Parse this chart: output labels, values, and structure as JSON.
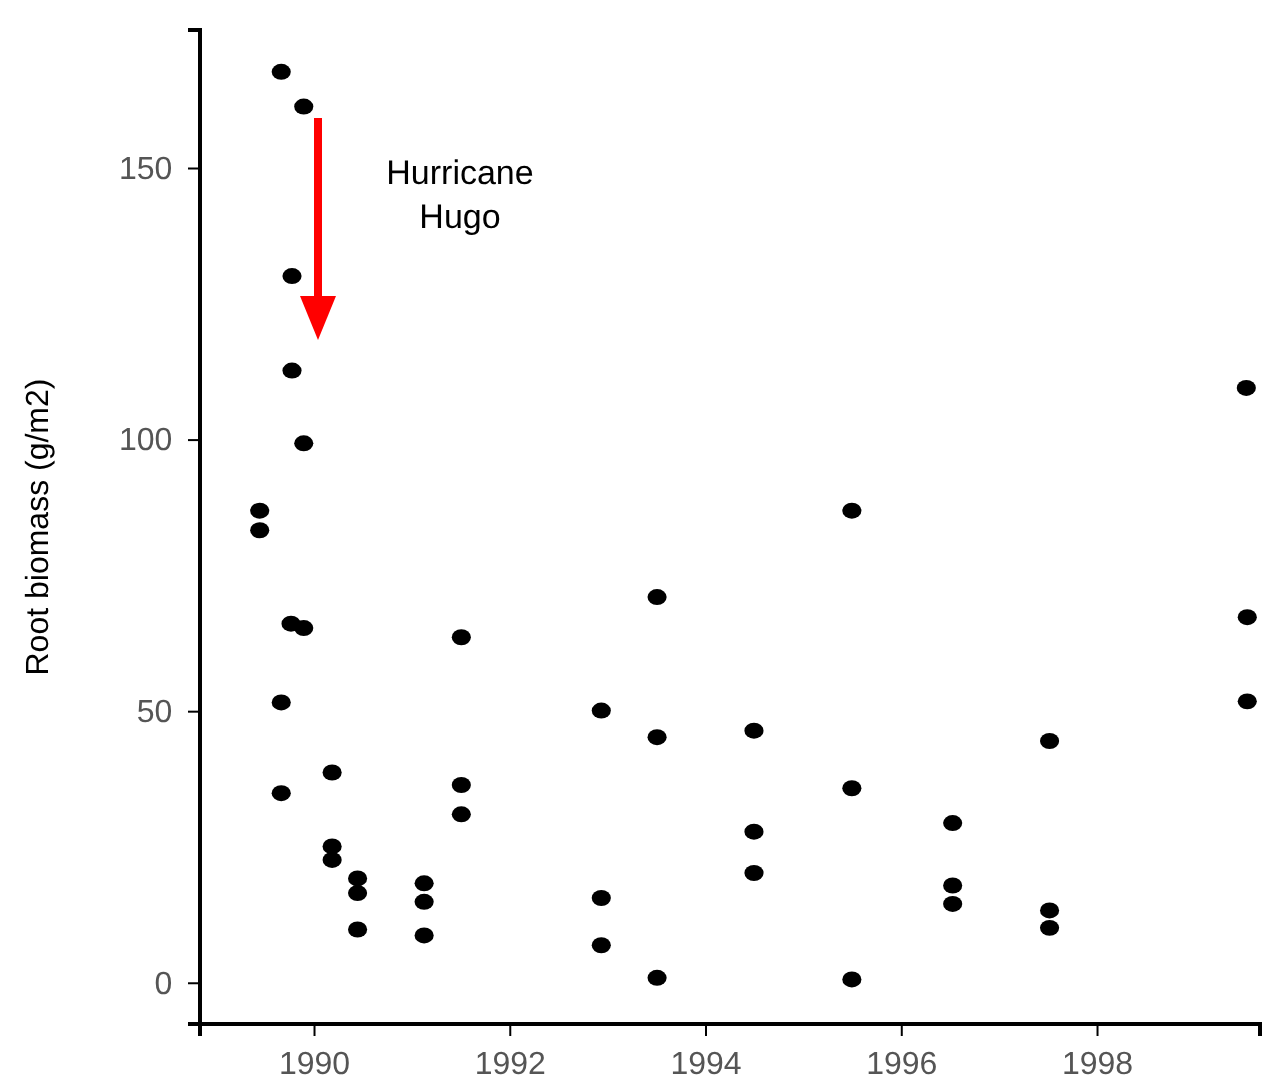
{
  "chart_data": {
    "type": "scatter",
    "ylabel": "Root biomass (g/m2)",
    "annotations": [
      "Hurricane Hugo"
    ],
    "marker": "circle",
    "grid": false,
    "xlim": [
      1988.83,
      1999.66
    ],
    "ylim": [
      -7.5,
      175.5
    ],
    "xticks": [
      1990,
      1992,
      1994,
      1996,
      1998
    ],
    "yticks": [
      0,
      50,
      100,
      150
    ],
    "series": [
      {
        "color": "#000000",
        "x": [
          1989.66,
          1989.89,
          1989.77,
          1989.77,
          1989.89,
          1989.44,
          1989.44,
          1989.76,
          1989.89,
          1989.66,
          1989.66,
          1990.18,
          1990.18,
          1990.18,
          1990.44,
          1990.44,
          1990.44,
          1991.12,
          1991.12,
          1991.12,
          1991.5,
          1991.5,
          1991.5,
          1992.93,
          1992.93,
          1992.93,
          1993.5,
          1993.5,
          1993.5,
          1994.49,
          1994.49,
          1994.49,
          1995.49,
          1995.49,
          1995.49,
          1996.52,
          1996.52,
          1996.52,
          1997.51,
          1997.51,
          1997.51,
          1999.52,
          1999.53,
          1999.53
        ],
        "values": [
          167.8,
          161.4,
          130.2,
          112.8,
          99.4,
          87.0,
          83.4,
          66.2,
          65.4,
          51.7,
          35.0,
          38.8,
          25.2,
          22.7,
          19.3,
          16.6,
          9.9,
          18.4,
          15.0,
          8.8,
          63.7,
          36.5,
          31.1,
          50.2,
          15.7,
          7.0,
          71.1,
          45.3,
          1.0,
          46.5,
          27.9,
          20.3,
          87.0,
          35.9,
          0.7,
          29.5,
          18.0,
          14.6,
          44.6,
          13.4,
          10.2,
          109.6,
          67.4,
          51.9
        ]
      }
    ]
  }
}
